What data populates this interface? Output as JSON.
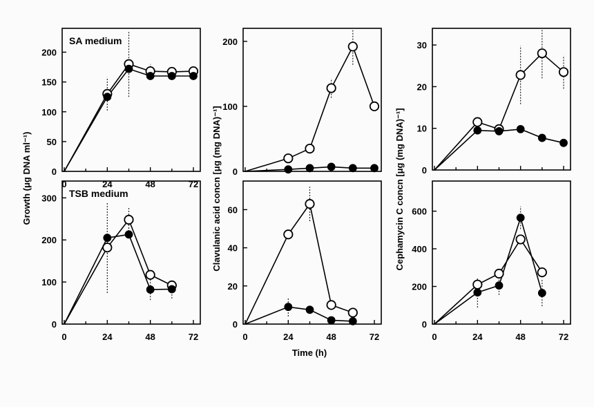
{
  "chart_data": [
    {
      "type": "line",
      "title": "SA medium",
      "xlabel": "",
      "ylabel": "Growth (μg DNA ml⁻¹)",
      "xlim": [
        0,
        72
      ],
      "ylim": [
        0,
        240
      ],
      "xticks": [
        "0",
        "24",
        "48",
        "72"
      ],
      "yticks": [
        "0",
        "50",
        "100",
        "150",
        "200"
      ],
      "series": [
        {
          "name": "open",
          "filled": false,
          "x": [
            0,
            24,
            36,
            48,
            60,
            72
          ],
          "y": [
            0,
            130,
            180,
            168,
            167,
            168
          ],
          "err": [
            0,
            28,
            55,
            12,
            8,
            0
          ]
        },
        {
          "name": "filled",
          "filled": true,
          "x": [
            0,
            24,
            36,
            48,
            60,
            72
          ],
          "y": [
            0,
            125,
            172,
            160,
            160,
            160
          ],
          "err": [
            0,
            0,
            0,
            0,
            0,
            0
          ]
        }
      ]
    },
    {
      "type": "line",
      "title": "",
      "xlabel": "",
      "ylabel": "Clavulanic acid concn [μg (mg DNA)⁻¹]",
      "xlim": [
        0,
        72
      ],
      "ylim": [
        0,
        220
      ],
      "xticks": [],
      "yticks": [
        "0",
        "100",
        "200"
      ],
      "series": [
        {
          "name": "open",
          "filled": false,
          "x": [
            0,
            24,
            36,
            48,
            60,
            72
          ],
          "y": [
            0,
            20,
            35,
            128,
            192,
            100
          ],
          "err": [
            0,
            0,
            0,
            15,
            28,
            0
          ]
        },
        {
          "name": "filled",
          "filled": true,
          "x": [
            0,
            24,
            36,
            48,
            60,
            72
          ],
          "y": [
            0,
            3,
            5,
            7,
            5,
            5
          ],
          "err": [
            0,
            0,
            0,
            0,
            0,
            0
          ]
        }
      ]
    },
    {
      "type": "line",
      "title": "",
      "xlabel": "",
      "ylabel": "Cephamycin C concn [μg (mg DNA)⁻¹]",
      "xlim": [
        0,
        72
      ],
      "ylim": [
        0,
        34
      ],
      "xticks": [],
      "yticks": [
        "0",
        "10",
        "20",
        "30"
      ],
      "series": [
        {
          "name": "open",
          "filled": false,
          "x": [
            0,
            24,
            36,
            48,
            60,
            72
          ],
          "y": [
            0,
            11.5,
            9.8,
            22.8,
            28,
            23.5
          ],
          "err": [
            0,
            0,
            0,
            7,
            6,
            4
          ]
        },
        {
          "name": "filled",
          "filled": true,
          "x": [
            0,
            24,
            36,
            48,
            60,
            72
          ],
          "y": [
            0,
            9.5,
            9.3,
            9.8,
            7.7,
            6.5
          ],
          "err": [
            0,
            0,
            0,
            0,
            0,
            0
          ]
        }
      ]
    },
    {
      "type": "line",
      "title": "TSB medium",
      "xlabel": "",
      "ylabel": "",
      "xlim": [
        0,
        72
      ],
      "ylim": [
        0,
        340
      ],
      "xticks": [
        "0",
        "24",
        "48",
        "72"
      ],
      "yticks": [
        "0",
        "100",
        "200",
        "300"
      ],
      "series": [
        {
          "name": "open",
          "filled": false,
          "x": [
            0,
            24,
            36,
            48,
            60
          ],
          "y": [
            0,
            182,
            248,
            117,
            92
          ],
          "err": [
            0,
            108,
            28,
            0,
            0
          ]
        },
        {
          "name": "filled",
          "filled": true,
          "x": [
            0,
            24,
            36,
            48,
            60
          ],
          "y": [
            0,
            205,
            213,
            82,
            83
          ],
          "err": [
            0,
            0,
            0,
            25,
            22
          ]
        }
      ]
    },
    {
      "type": "line",
      "title": "",
      "xlabel": "Time (h)",
      "ylabel": "",
      "xlim": [
        0,
        72
      ],
      "ylim": [
        0,
        75
      ],
      "xticks": [
        "0",
        "24",
        "48",
        "72"
      ],
      "yticks": [
        "0",
        "20",
        "40",
        "60"
      ],
      "series": [
        {
          "name": "open",
          "filled": false,
          "x": [
            0,
            24,
            36,
            48,
            60
          ],
          "y": [
            0,
            47,
            63,
            10,
            6
          ],
          "err": [
            0,
            0,
            9,
            0,
            0
          ]
        },
        {
          "name": "filled",
          "filled": true,
          "x": [
            0,
            24,
            36,
            48,
            60
          ],
          "y": [
            0,
            9,
            7.5,
            2,
            1.5
          ],
          "err": [
            0,
            5,
            0,
            0,
            0
          ]
        }
      ]
    },
    {
      "type": "line",
      "title": "",
      "xlabel": "",
      "ylabel": "",
      "xlim": [
        0,
        72
      ],
      "ylim": [
        0,
        760
      ],
      "xticks": [
        "0",
        "24",
        "48",
        "72"
      ],
      "yticks": [
        "0",
        "200",
        "400",
        "600"
      ],
      "series": [
        {
          "name": "open",
          "filled": false,
          "x": [
            0,
            24,
            36,
            48,
            60
          ],
          "y": [
            0,
            210,
            268,
            450,
            275
          ],
          "err": [
            0,
            0,
            0,
            0,
            0
          ]
        },
        {
          "name": "filled",
          "filled": true,
          "x": [
            0,
            24,
            36,
            48,
            60
          ],
          "y": [
            0,
            168,
            205,
            565,
            165
          ],
          "err": [
            0,
            80,
            50,
            60,
            70
          ]
        }
      ]
    }
  ]
}
